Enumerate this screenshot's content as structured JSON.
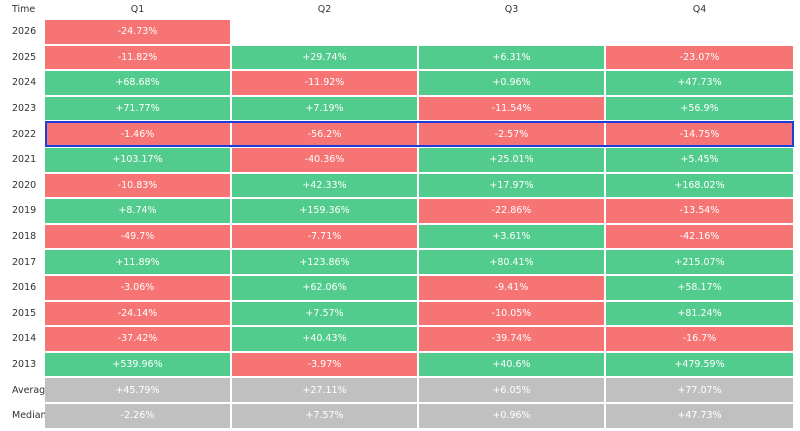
{
  "table": {
    "header": [
      "Time",
      "Q1",
      "Q2",
      "Q3",
      "Q4"
    ],
    "rows": [
      [
        "2026",
        "-24.73%",
        null,
        null,
        null
      ],
      [
        "2025",
        "-11.82%",
        "+29.74%",
        "+6.31%",
        "-23.07%"
      ],
      [
        "2024",
        "+68.68%",
        "-11.92%",
        "+0.96%",
        "+47.73%"
      ],
      [
        "2023",
        "+71.77%",
        "+7.19%",
        "-11.54%",
        "+56.9%"
      ],
      [
        "2022",
        "-1.46%",
        "-56.2%",
        "-2.57%",
        "-14.75%"
      ],
      [
        "2021",
        "+103.17%",
        "-40.36%",
        "+25.01%",
        "+5.45%"
      ],
      [
        "2020",
        "-10.83%",
        "+42.33%",
        "+17.97%",
        "+168.02%"
      ],
      [
        "2019",
        "+8.74%",
        "+159.36%",
        "-22.86%",
        "-13.54%"
      ],
      [
        "2018",
        "-49.7%",
        "-7.71%",
        "+3.61%",
        "-42.16%"
      ],
      [
        "2017",
        "+11.89%",
        "+123.86%",
        "+80.41%",
        "+215.07%"
      ],
      [
        "2016",
        "-3.06%",
        "+62.06%",
        "-9.41%",
        "+58.17%"
      ],
      [
        "2015",
        "-24.14%",
        "+7.57%",
        "-10.05%",
        "+81.24%"
      ],
      [
        "2014",
        "-37.42%",
        "+40.43%",
        "-39.74%",
        "-16.7%"
      ],
      [
        "2013",
        "+539.96%",
        "-3.97%",
        "+40.6%",
        "+479.59%"
      ]
    ],
    "summary_rows": [
      [
        "Average",
        "+45.79%",
        "+27.11%",
        "+6.05%",
        "+77.07%"
      ],
      [
        "Median",
        "-2.26%",
        "+7.57%",
        "+0.96%",
        "+47.73%"
      ]
    ],
    "colors": {
      "positive": "#52cc8c",
      "negative": "#f77474",
      "summary": "#c0c0c0",
      "selected": "#1a3fd6"
    }
  }
}
